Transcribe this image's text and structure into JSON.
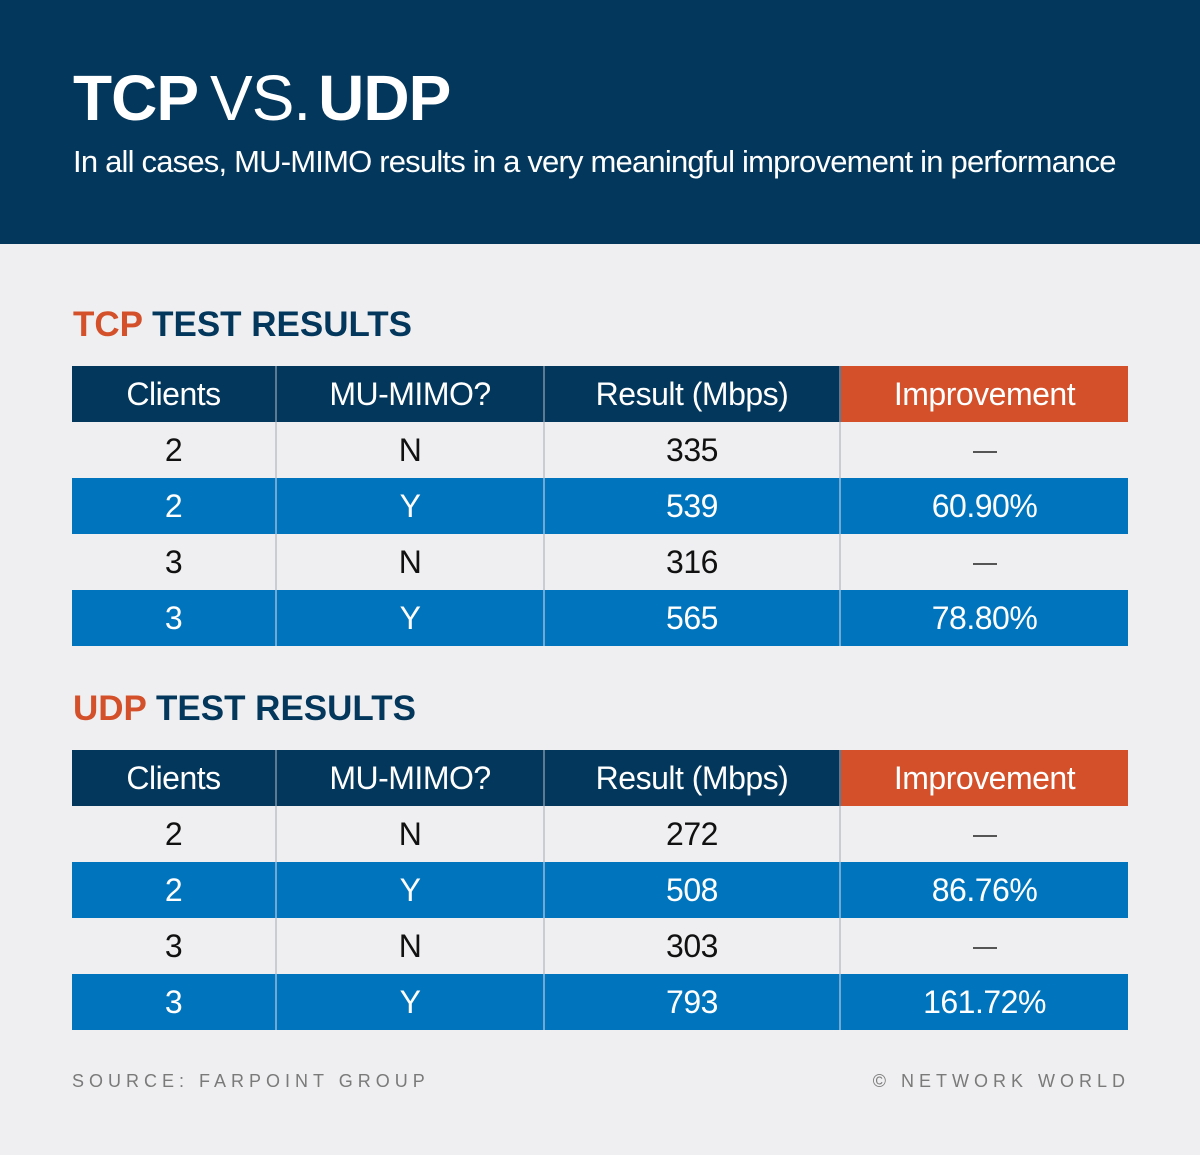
{
  "header": {
    "title_part1": "TCP",
    "title_part2": "VS.",
    "title_part3": "UDP",
    "subtitle": "In all cases, MU-MIMO results in a very meaningful improvement in performance"
  },
  "colors": {
    "header_bg": "#03375c",
    "accent": "#d4502a",
    "row_highlight": "#0075bd",
    "page_bg": "#efeff1"
  },
  "tcp": {
    "heading_accent": "TCP",
    "heading_rest": "TEST RESULTS"
  },
  "udp": {
    "heading_accent": "UDP",
    "heading_rest": "TEST RESULTS"
  },
  "footer": {
    "source": "SOURCE: FARPOINT GROUP",
    "credit": "© NETWORK WORLD"
  },
  "chart_data": [
    {
      "type": "table",
      "title": "TCP TEST RESULTS",
      "columns": [
        "Clients",
        "MU-MIMO?",
        "Result (Mbps)",
        "Improvement"
      ],
      "rows": [
        [
          "2",
          "N",
          "335",
          "—"
        ],
        [
          "2",
          "Y",
          "539",
          "60.90%"
        ],
        [
          "3",
          "N",
          "316",
          "—"
        ],
        [
          "3",
          "Y",
          "565",
          "78.80%"
        ]
      ]
    },
    {
      "type": "table",
      "title": "UDP TEST RESULTS",
      "columns": [
        "Clients",
        "MU-MIMO?",
        "Result (Mbps)",
        "Improvement"
      ],
      "rows": [
        [
          "2",
          "N",
          "272",
          "—"
        ],
        [
          "2",
          "Y",
          "508",
          "86.76%"
        ],
        [
          "3",
          "N",
          "303",
          "—"
        ],
        [
          "3",
          "Y",
          "793",
          "161.72%"
        ]
      ]
    }
  ]
}
